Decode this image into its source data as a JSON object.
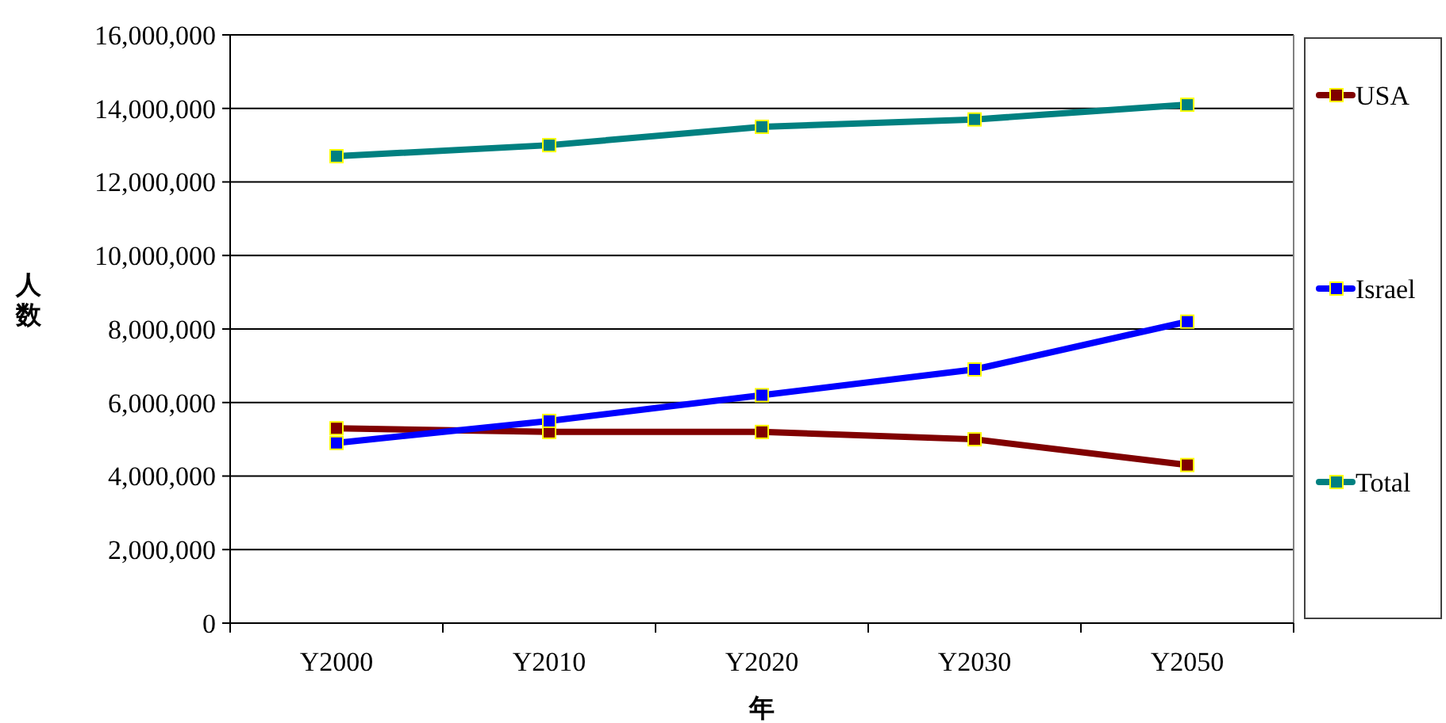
{
  "chart_data": {
    "type": "line",
    "xlabel": "年",
    "ylabel": "人数",
    "categories": [
      "Y2000",
      "Y2010",
      "Y2020",
      "Y2030",
      "Y2050"
    ],
    "series": [
      {
        "name": "USA",
        "color": "#800000",
        "values": [
          5300000,
          5200000,
          5200000,
          5000000,
          4300000
        ]
      },
      {
        "name": "Israel",
        "color": "#0000ff",
        "values": [
          4900000,
          5500000,
          6200000,
          6900000,
          8200000
        ]
      },
      {
        "name": "Total",
        "color": "#008080",
        "values": [
          12700000,
          13000000,
          13500000,
          13700000,
          14100000
        ]
      }
    ],
    "ylim": [
      0,
      16000000
    ],
    "yticks": [
      {
        "value": 0,
        "label": "0"
      },
      {
        "value": 2000000,
        "label": "2,000,000"
      },
      {
        "value": 4000000,
        "label": "4,000,000"
      },
      {
        "value": 6000000,
        "label": "6,000,000"
      },
      {
        "value": 8000000,
        "label": "8,000,000"
      },
      {
        "value": 10000000,
        "label": "10,000,000"
      },
      {
        "value": 12000000,
        "label": "12,000,000"
      },
      {
        "value": 14000000,
        "label": "14,000,000"
      },
      {
        "value": 16000000,
        "label": "16,000,000"
      }
    ],
    "grid": "y",
    "legend": "right",
    "marker": "square",
    "line_style": "solid"
  }
}
